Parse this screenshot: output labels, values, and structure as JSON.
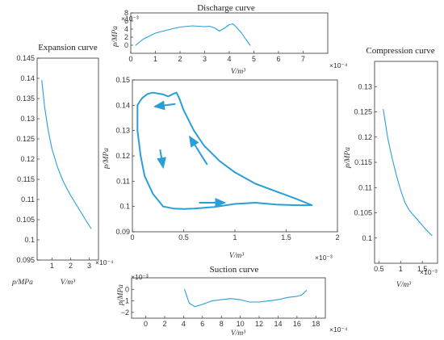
{
  "colors": {
    "curve": "#2a9fd6",
    "axis": "#333333"
  },
  "chart_data": [
    {
      "id": "discharge",
      "type": "line",
      "title": "Discharge curve",
      "ylabel": "p/MPa",
      "xlabel": "V/m³",
      "y_exponent_label": "×10⁻³",
      "x_exponent_label": "×10⁻⁴",
      "xlim": [
        0,
        8
      ],
      "ylim": [
        -0.002,
        0.008
      ],
      "xticks": [
        0,
        1,
        2,
        3,
        4,
        5,
        6,
        7
      ],
      "xtick_labels": [
        "0",
        "1",
        "2",
        "3",
        "4",
        "5",
        "6",
        "7"
      ],
      "yticks": [
        0,
        0.002,
        0.004,
        0.006,
        0.008
      ],
      "ytick_labels": [
        "0",
        "2",
        "4",
        "6",
        "8"
      ],
      "x": [
        0.2,
        0.5,
        1.0,
        1.5,
        2.0,
        2.5,
        3.0,
        3.2,
        3.4,
        3.6,
        3.8,
        4.0,
        4.15,
        4.3,
        4.5,
        4.7,
        4.85
      ],
      "y": [
        0.0,
        0.0015,
        0.003,
        0.0038,
        0.0045,
        0.0048,
        0.0046,
        0.0047,
        0.0043,
        0.0035,
        0.0042,
        0.0051,
        0.0053,
        0.0044,
        0.003,
        0.0012,
        0.0
      ]
    },
    {
      "id": "expansion",
      "type": "line",
      "title": "Expansion curve",
      "ylabel": "p/MPa",
      "xlabel": "V/m³",
      "x_exponent_label": "×10⁻⁴",
      "xlim": [
        0.2,
        3.5
      ],
      "ylim": [
        0.095,
        0.145
      ],
      "xticks": [
        1,
        2,
        3
      ],
      "xtick_labels": [
        "1",
        "2",
        "3"
      ],
      "yticks": [
        0.095,
        0.1,
        0.105,
        0.11,
        0.115,
        0.12,
        0.125,
        0.13,
        0.135,
        0.14,
        0.145
      ],
      "ytick_labels": [
        "0.095",
        "0.1",
        "0.105",
        "0.11",
        "0.115",
        "0.12",
        "0.125",
        "0.13",
        "0.135",
        "0.14",
        "0.145"
      ],
      "x": [
        0.45,
        0.6,
        0.8,
        1.0,
        1.3,
        1.6,
        2.0,
        2.4,
        2.8,
        3.1
      ],
      "y": [
        0.1395,
        0.133,
        0.127,
        0.1225,
        0.118,
        0.1145,
        0.111,
        0.108,
        0.105,
        0.1028
      ]
    },
    {
      "id": "main",
      "type": "line",
      "title": "",
      "ylabel": "p/MPa",
      "xlabel": "V/m³",
      "x_exponent_label": "×10⁻³",
      "xlim": [
        0,
        2
      ],
      "ylim": [
        0.09,
        0.15
      ],
      "xticks": [
        0,
        0.5,
        1,
        1.5,
        2
      ],
      "xtick_labels": [
        "0",
        "0.5",
        "1",
        "1.5",
        "2"
      ],
      "yticks": [
        0.09,
        0.1,
        0.11,
        0.12,
        0.13,
        0.14,
        0.15
      ],
      "ytick_labels": [
        "0.09",
        "0.1",
        "0.11",
        "0.12",
        "0.13",
        "0.14",
        "0.15"
      ],
      "x": [
        0.05,
        0.08,
        0.1,
        0.15,
        0.2,
        0.3,
        0.35,
        0.4,
        0.43,
        0.46,
        0.5,
        0.6,
        0.7,
        0.85,
        1.0,
        1.2,
        1.4,
        1.6,
        1.75,
        1.6,
        1.4,
        1.2,
        1.0,
        0.8,
        0.6,
        0.5,
        0.4,
        0.3,
        0.2,
        0.12,
        0.08,
        0.05,
        0.05
      ],
      "y": [
        0.14,
        0.142,
        0.143,
        0.1445,
        0.145,
        0.1443,
        0.1435,
        0.1445,
        0.145,
        0.1425,
        0.138,
        0.13,
        0.124,
        0.118,
        0.1135,
        0.109,
        0.106,
        0.103,
        0.1005,
        0.1005,
        0.1008,
        0.1015,
        0.101,
        0.0998,
        0.0992,
        0.099,
        0.0992,
        0.1,
        0.105,
        0.112,
        0.12,
        0.13,
        0.14
      ],
      "arrows": [
        {
          "from": [
            0.42,
            0.1405
          ],
          "to": [
            0.22,
            0.1395
          ]
        },
        {
          "from": [
            0.27,
            0.1225
          ],
          "to": [
            0.3,
            0.1155
          ]
        },
        {
          "from": [
            0.73,
            0.1165
          ],
          "to": [
            0.56,
            0.1275
          ]
        },
        {
          "from": [
            0.65,
            0.1015
          ],
          "to": [
            0.9,
            0.1015
          ]
        }
      ]
    },
    {
      "id": "compression",
      "type": "line",
      "title": "Compression curve",
      "ylabel": "p/MPa",
      "xlabel": "V/m³",
      "x_exponent_label": "×10⁻³",
      "xlim": [
        0.4,
        1.85
      ],
      "ylim": [
        0.095,
        0.135
      ],
      "xticks": [
        0.5,
        1,
        1.5
      ],
      "xtick_labels": [
        "0.5",
        "1",
        "1.5"
      ],
      "yticks": [
        0.1,
        0.105,
        0.11,
        0.115,
        0.12,
        0.125,
        0.13
      ],
      "ytick_labels": [
        "0.1",
        "0.105",
        "0.11",
        "0.115",
        "0.12",
        "0.125",
        "0.13"
      ],
      "x": [
        0.6,
        0.7,
        0.8,
        0.9,
        1.0,
        1.1,
        1.2,
        1.3,
        1.4,
        1.5,
        1.6,
        1.72
      ],
      "y": [
        0.1255,
        0.12,
        0.116,
        0.1125,
        0.1095,
        0.107,
        0.1055,
        0.1045,
        0.1035,
        0.1025,
        0.1015,
        0.1005
      ]
    },
    {
      "id": "suction",
      "type": "line",
      "title": "Suction curve",
      "ylabel": "p/MPa",
      "xlabel": "V/m³",
      "y_exponent_label": "×10⁻³",
      "x_exponent_label": "×10⁻⁴",
      "xlim": [
        -1.5,
        19
      ],
      "ylim": [
        -0.0025,
        0.001
      ],
      "xticks": [
        0,
        2,
        4,
        6,
        8,
        10,
        12,
        14,
        16,
        18
      ],
      "xtick_labels": [
        "0",
        "2",
        "4",
        "6",
        "8",
        "10",
        "12",
        "14",
        "16",
        "18"
      ],
      "yticks": [
        -0.002,
        -0.001,
        0
      ],
      "ytick_labels": [
        "−2",
        "−1",
        "0"
      ],
      "x": [
        4.1,
        4.6,
        5.2,
        6.0,
        7.0,
        8.0,
        9.0,
        10.0,
        11.0,
        12.0,
        13.0,
        14.0,
        15.0,
        16.0,
        16.5,
        17.0
      ],
      "y": [
        0.0,
        -0.0012,
        -0.0015,
        -0.0013,
        -0.001,
        -0.0009,
        -0.0008,
        -0.0009,
        -0.0011,
        -0.0011,
        -0.001,
        -0.0009,
        -0.0007,
        -0.0006,
        -0.0005,
        -0.0001
      ]
    }
  ]
}
